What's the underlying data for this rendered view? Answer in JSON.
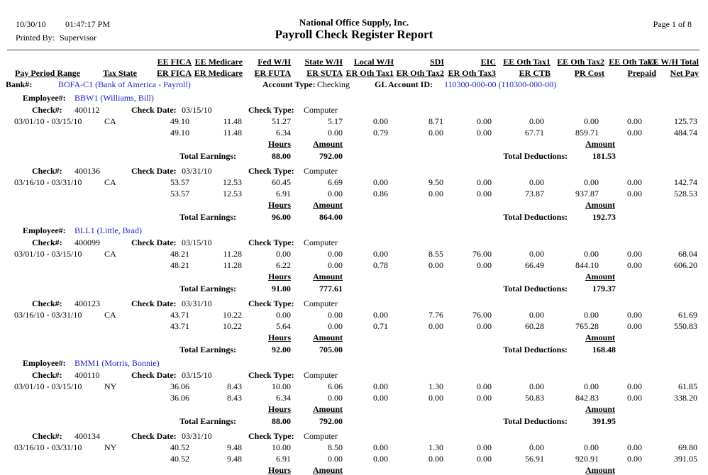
{
  "page": {
    "date": "10/30/10",
    "time": "01:47:17 PM",
    "printed_by_label": "Printed By:",
    "printed_by": "Supervisor",
    "company": "National Office Supply, Inc.",
    "title": "Payroll Check Register Report",
    "page_info": "Page 1 of 8"
  },
  "colors": {
    "link_blue": "#2222CC",
    "text": "#000000",
    "background": "#FFFFFF"
  },
  "table": {
    "header_row1": [
      "EE FICA",
      "EE Medicare",
      "Fed W/H",
      "State W/H",
      "Local W/H",
      "SDI",
      "EIC",
      "EE Oth Tax1",
      "EE Oth Tax2",
      "EE Oth Tax3",
      "EE W/H Total"
    ],
    "header_row2_left": [
      "Pay Period Range",
      "Tax State"
    ],
    "header_row2": [
      "ER FICA",
      "ER Medicare",
      "ER FUTA",
      "ER SUTA",
      "ER Oth Tax1",
      "ER Oth Tax2",
      "ER Oth Tax3",
      "ER CTB",
      "PR Cost",
      "Prepaid",
      "Net Pay"
    ],
    "labels": {
      "bank": "Bank#:",
      "account_type": "Account Type:",
      "gl_account": "GL Account ID:",
      "employee": "Employee#:",
      "check_no": "Check#:",
      "check_date": "Check Date:",
      "check_type": "Check Type:",
      "hours": "Hours",
      "amount": "Amount",
      "total_earnings": "Total Earnings:",
      "total_deductions": "Total Deductions:"
    }
  },
  "bank": {
    "value": "BOFA-C1 (Bank of America - Payroll)",
    "account_type": "Checking",
    "gl_account": "110300-000-00 (110300-000-00)"
  },
  "employees": [
    {
      "id_name": "BBW1 (Williams, Bill)",
      "checks": [
        {
          "number": "400112",
          "date": "03/15/10",
          "type": "Computer",
          "period": "03/01/10 - 03/15/10",
          "tax_state": "CA",
          "row1": [
            "49.10",
            "11.48",
            "51.27",
            "5.17",
            "0.00",
            "8.71",
            "0.00",
            "0.00",
            "0.00",
            "0.00",
            "125.73"
          ],
          "row2": [
            "49.10",
            "11.48",
            "6.34",
            "0.00",
            "0.79",
            "0.00",
            "0.00",
            "67.71",
            "859.71",
            "0.00",
            "484.74"
          ],
          "total_hours": "88.00",
          "total_earnings": "792.00",
          "total_deductions": "181.53"
        },
        {
          "number": "400136",
          "date": "03/31/10",
          "type": "Computer",
          "period": "03/16/10 - 03/31/10",
          "tax_state": "CA",
          "row1": [
            "53.57",
            "12.53",
            "60.45",
            "6.69",
            "0.00",
            "9.50",
            "0.00",
            "0.00",
            "0.00",
            "0.00",
            "142.74"
          ],
          "row2": [
            "53.57",
            "12.53",
            "6.91",
            "0.00",
            "0.86",
            "0.00",
            "0.00",
            "73.87",
            "937.87",
            "0.00",
            "528.53"
          ],
          "total_hours": "96.00",
          "total_earnings": "864.00",
          "total_deductions": "192.73"
        }
      ]
    },
    {
      "id_name": "BLL1 (Little, Brad)",
      "checks": [
        {
          "number": "400099",
          "date": "03/15/10",
          "type": "Computer",
          "period": "03/01/10 - 03/15/10",
          "tax_state": "CA",
          "row1": [
            "48.21",
            "11.28",
            "0.00",
            "0.00",
            "0.00",
            "8.55",
            "76.00",
            "0.00",
            "0.00",
            "0.00",
            "68.04"
          ],
          "row2": [
            "48.21",
            "11.28",
            "6.22",
            "0.00",
            "0.78",
            "0.00",
            "0.00",
            "66.49",
            "844.10",
            "0.00",
            "606.20"
          ],
          "total_hours": "91.00",
          "total_earnings": "777.61",
          "total_deductions": "179.37"
        },
        {
          "number": "400123",
          "date": "03/31/10",
          "type": "Computer",
          "period": "03/16/10 - 03/31/10",
          "tax_state": "CA",
          "row1": [
            "43.71",
            "10.22",
            "0.00",
            "0.00",
            "0.00",
            "7.76",
            "76.00",
            "0.00",
            "0.00",
            "0.00",
            "61.69"
          ],
          "row2": [
            "43.71",
            "10.22",
            "5.64",
            "0.00",
            "0.71",
            "0.00",
            "0.00",
            "60.28",
            "765.28",
            "0.00",
            "550.83"
          ],
          "total_hours": "92.00",
          "total_earnings": "705.00",
          "total_deductions": "168.48"
        }
      ]
    },
    {
      "id_name": "BMM1 (Morris, Bonnie)",
      "checks": [
        {
          "number": "400110",
          "date": "03/15/10",
          "type": "Computer",
          "period": "03/01/10 - 03/15/10",
          "tax_state": "NY",
          "row1": [
            "36.06",
            "8.43",
            "10.00",
            "6.06",
            "0.00",
            "1.30",
            "0.00",
            "0.00",
            "0.00",
            "0.00",
            "61.85"
          ],
          "row2": [
            "36.06",
            "8.43",
            "6.34",
            "0.00",
            "0.00",
            "0.00",
            "0.00",
            "50.83",
            "842.83",
            "0.00",
            "338.20"
          ],
          "total_hours": "88.00",
          "total_earnings": "792.00",
          "total_deductions": "391.95"
        },
        {
          "number": "400134",
          "date": "03/31/10",
          "type": "Computer",
          "period": "03/16/10 - 03/31/10",
          "tax_state": "NY",
          "row1": [
            "40.52",
            "9.48",
            "10.00",
            "8.50",
            "0.00",
            "1.30",
            "0.00",
            "0.00",
            "0.00",
            "0.00",
            "69.80"
          ],
          "row2": [
            "40.52",
            "9.48",
            "6.91",
            "0.00",
            "0.00",
            "0.00",
            "0.00",
            "56.91",
            "920.91",
            "0.00",
            "391.05"
          ],
          "total_hours": null,
          "total_earnings": null,
          "total_deductions": null
        }
      ]
    }
  ]
}
